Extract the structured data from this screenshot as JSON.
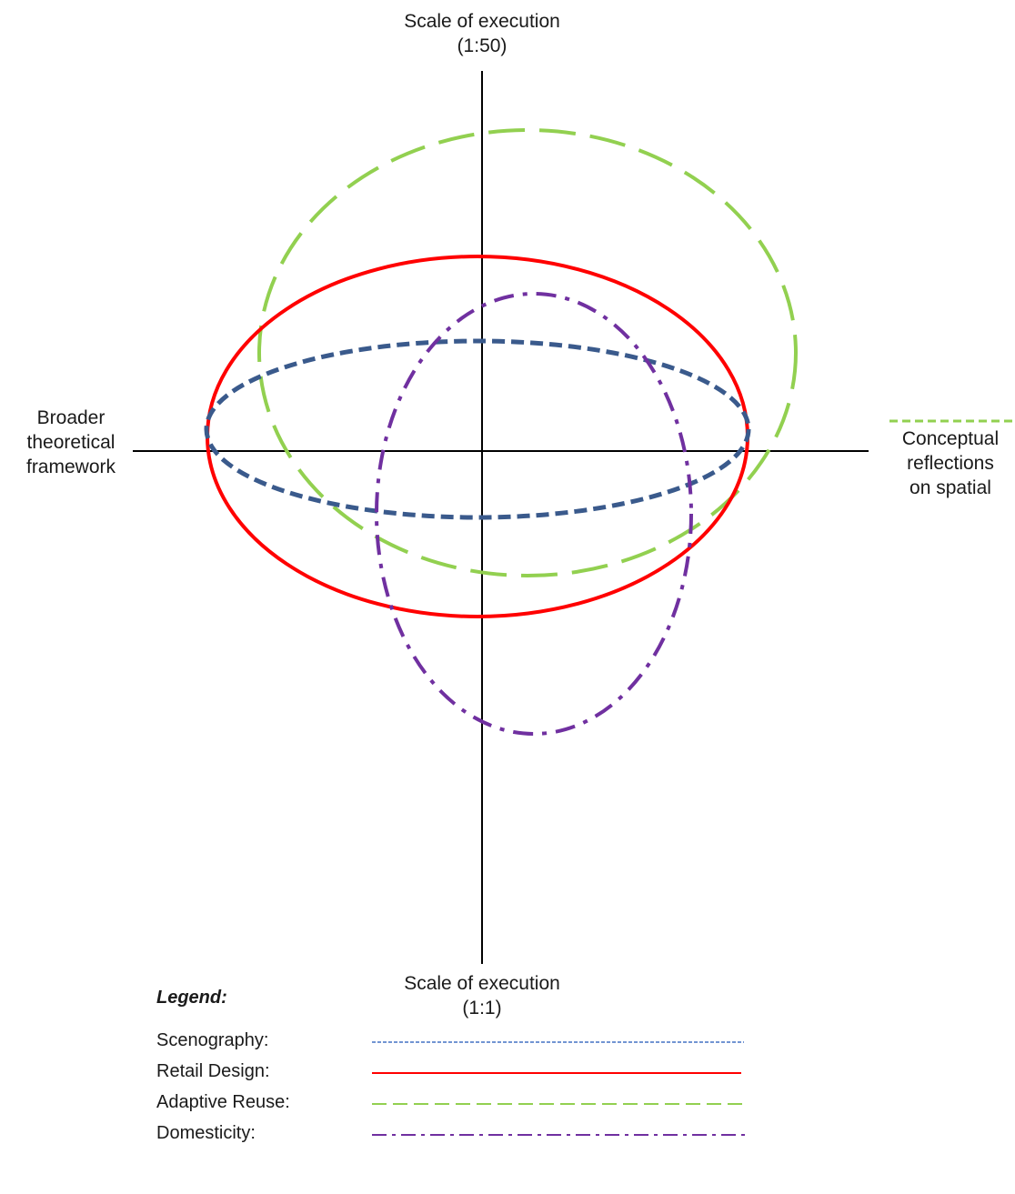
{
  "axes": {
    "top": {
      "line1": "Scale of execution",
      "line2": "(1:50)"
    },
    "bottom": {
      "line1": "Scale of execution",
      "line2": "(1:1)"
    },
    "left": {
      "line1": "Broader",
      "line2": "theoretical",
      "line3": "framework"
    },
    "right": {
      "line1": "Conceptual",
      "line2": "reflections",
      "line3": "on spatial"
    }
  },
  "legend": {
    "title": "Legend:",
    "items": [
      {
        "label": "Scenography:",
        "color": "#4472c4",
        "style": "fine-dashed"
      },
      {
        "label": "Retail Design:",
        "color": "#ff0000",
        "style": "solid"
      },
      {
        "label": "Adaptive Reuse:",
        "color": "#92d050",
        "style": "long-dashed"
      },
      {
        "label": "Domesticity:",
        "color": "#7030a0",
        "style": "dash-dot"
      }
    ]
  },
  "shapes": {
    "scenography": {
      "color": "#3a5a8c",
      "style": "dashed"
    },
    "retail_design": {
      "color": "#ff0000",
      "style": "solid"
    },
    "adaptive_reuse": {
      "color": "#92d050",
      "style": "long-dashed"
    },
    "domesticity": {
      "color": "#7030a0",
      "style": "dash-dot"
    }
  }
}
